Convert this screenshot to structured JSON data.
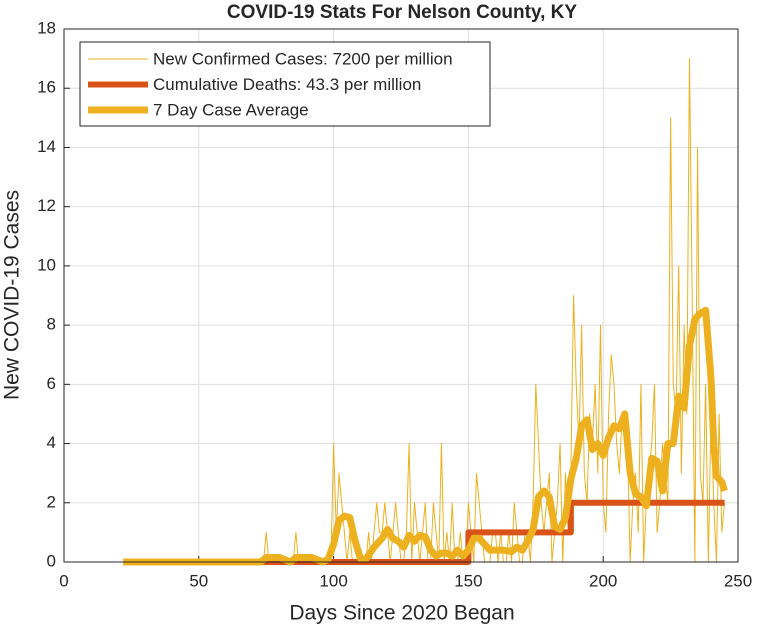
{
  "chart_data": {
    "type": "line",
    "title": "COVID-19 Stats For Nelson County, KY",
    "x_label": "Days Since 2020 Began",
    "y_label": "New COVID-19 Cases",
    "xlim": [
      0,
      250
    ],
    "xticks": [
      0,
      50,
      100,
      150,
      200,
      250
    ],
    "ylim": [
      0,
      18
    ],
    "yticks": [
      0,
      2,
      4,
      6,
      8,
      10,
      12,
      14,
      16,
      18
    ],
    "grid": true,
    "legend": "top-left",
    "series": [
      {
        "name": "New Confirmed Cases: 7200 per million",
        "color": "#EDB120",
        "width": 1,
        "x": [
          22,
          70,
          71,
          72,
          73,
          74,
          75,
          76,
          77,
          78,
          79,
          80,
          81,
          82,
          83,
          84,
          85,
          86,
          87,
          88,
          89,
          90,
          91,
          92,
          93,
          94,
          95,
          96,
          97,
          98,
          99,
          100,
          101,
          102,
          103,
          104,
          105,
          106,
          107,
          108,
          109,
          110,
          111,
          112,
          113,
          114,
          115,
          116,
          117,
          118,
          119,
          120,
          121,
          122,
          123,
          124,
          125,
          126,
          127,
          128,
          129,
          130,
          131,
          132,
          133,
          134,
          135,
          136,
          137,
          138,
          139,
          140,
          141,
          142,
          143,
          144,
          145,
          146,
          147,
          148,
          149,
          150,
          151,
          152,
          153,
          154,
          155,
          156,
          157,
          158,
          159,
          160,
          161,
          162,
          163,
          164,
          165,
          166,
          167,
          168,
          169,
          170,
          171,
          172,
          173,
          174,
          175,
          176,
          177,
          178,
          179,
          180,
          181,
          182,
          183,
          184,
          185,
          186,
          187,
          188,
          189,
          190,
          191,
          192,
          193,
          194,
          195,
          196,
          197,
          198,
          199,
          200,
          201,
          202,
          203,
          204,
          205,
          206,
          207,
          208,
          209,
          210,
          211,
          212,
          213,
          214,
          215,
          216,
          217,
          218,
          219,
          220,
          221,
          222,
          223,
          224,
          225,
          226,
          227,
          228,
          229,
          230,
          231,
          232,
          233,
          234,
          235,
          236,
          237,
          238,
          239,
          240,
          241,
          242,
          243,
          244,
          245
        ],
        "values": [
          0,
          0,
          0,
          0,
          0,
          0,
          1,
          0,
          0,
          0,
          0,
          0,
          0,
          0,
          0,
          0,
          0,
          1,
          0,
          0,
          0,
          0,
          0,
          0,
          0,
          0,
          0,
          0,
          0,
          0,
          0,
          4,
          1,
          3,
          2,
          1,
          0,
          1,
          0,
          0,
          0,
          0,
          0,
          0,
          1,
          0,
          1,
          2,
          1,
          1,
          2,
          1,
          0,
          1,
          2,
          1,
          0,
          0,
          1,
          4,
          0,
          2,
          1,
          0,
          1,
          2,
          0,
          0,
          2,
          1,
          0,
          4,
          0,
          1,
          0,
          2,
          0,
          0,
          1,
          0,
          0,
          2,
          1,
          0,
          3,
          2,
          1,
          0,
          0,
          0,
          1,
          1,
          0,
          1,
          0,
          0,
          1,
          0,
          2,
          1,
          0,
          0,
          1,
          1,
          0,
          2,
          6,
          4,
          2,
          1,
          2,
          3,
          0,
          1,
          2,
          4,
          0,
          3,
          1,
          3,
          9,
          6,
          4,
          8,
          3,
          2,
          5,
          4,
          6,
          3,
          8,
          2,
          1,
          5,
          7,
          6,
          4,
          3,
          5,
          4,
          4,
          0,
          2,
          3,
          1,
          6,
          0,
          2,
          3,
          4,
          6,
          1,
          2,
          4,
          3,
          2,
          15,
          6,
          5,
          10,
          3,
          8,
          5,
          17,
          9,
          0,
          14,
          3,
          2,
          6,
          0,
          5,
          2,
          0,
          5,
          1,
          2
        ]
      },
      {
        "name": "Cumulative Deaths: 43.3 per million",
        "color": "#D95319",
        "width": 6,
        "x": [
          22,
          150,
          150,
          188,
          188,
          245
        ],
        "values": [
          0,
          0,
          1,
          1,
          2,
          2
        ]
      },
      {
        "name": "7 Day Case Average",
        "color": "#EDB120",
        "width": 7,
        "x": [
          22,
          73,
          75,
          80,
          84,
          86,
          92,
          96,
          98,
          100,
          102,
          104,
          106,
          108,
          110,
          112,
          115,
          118,
          120,
          122,
          124,
          126,
          128,
          130,
          132,
          134,
          136,
          138,
          140,
          142,
          144,
          146,
          148,
          150,
          152,
          154,
          156,
          158,
          160,
          163,
          166,
          168,
          170,
          172,
          174,
          176,
          178,
          180,
          182,
          184,
          186,
          188,
          190,
          192,
          194,
          196,
          198,
          200,
          202,
          204,
          206,
          208,
          210,
          212,
          214,
          216,
          218,
          220,
          222,
          224,
          226,
          228,
          230,
          232,
          234,
          236,
          238,
          240,
          241,
          242,
          244,
          245
        ],
        "values": [
          0,
          0,
          0.15,
          0.15,
          0,
          0.15,
          0.15,
          0,
          0.1,
          0.6,
          1.4,
          1.55,
          1.5,
          0.7,
          0.1,
          0.1,
          0.5,
          0.8,
          1.1,
          0.8,
          0.7,
          0.5,
          0.9,
          0.7,
          0.9,
          0.85,
          0.4,
          0.2,
          0.3,
          0.3,
          0.2,
          0.4,
          0.2,
          0.4,
          0.8,
          0.8,
          0.6,
          0.4,
          0.4,
          0.4,
          0.35,
          0.5,
          0.4,
          0.7,
          1.1,
          2.2,
          2.4,
          2.2,
          1.2,
          1.1,
          1.5,
          2.8,
          3.5,
          4.6,
          4.8,
          3.8,
          4.0,
          3.6,
          4.2,
          4.6,
          4.5,
          5.0,
          3.0,
          2.3,
          2.2,
          1.9,
          3.5,
          3.4,
          2.4,
          4.0,
          4.0,
          5.6,
          5.2,
          7.3,
          8.2,
          8.4,
          8.5,
          6.2,
          4.0,
          2.9,
          2.7,
          2.4
        ]
      }
    ]
  }
}
